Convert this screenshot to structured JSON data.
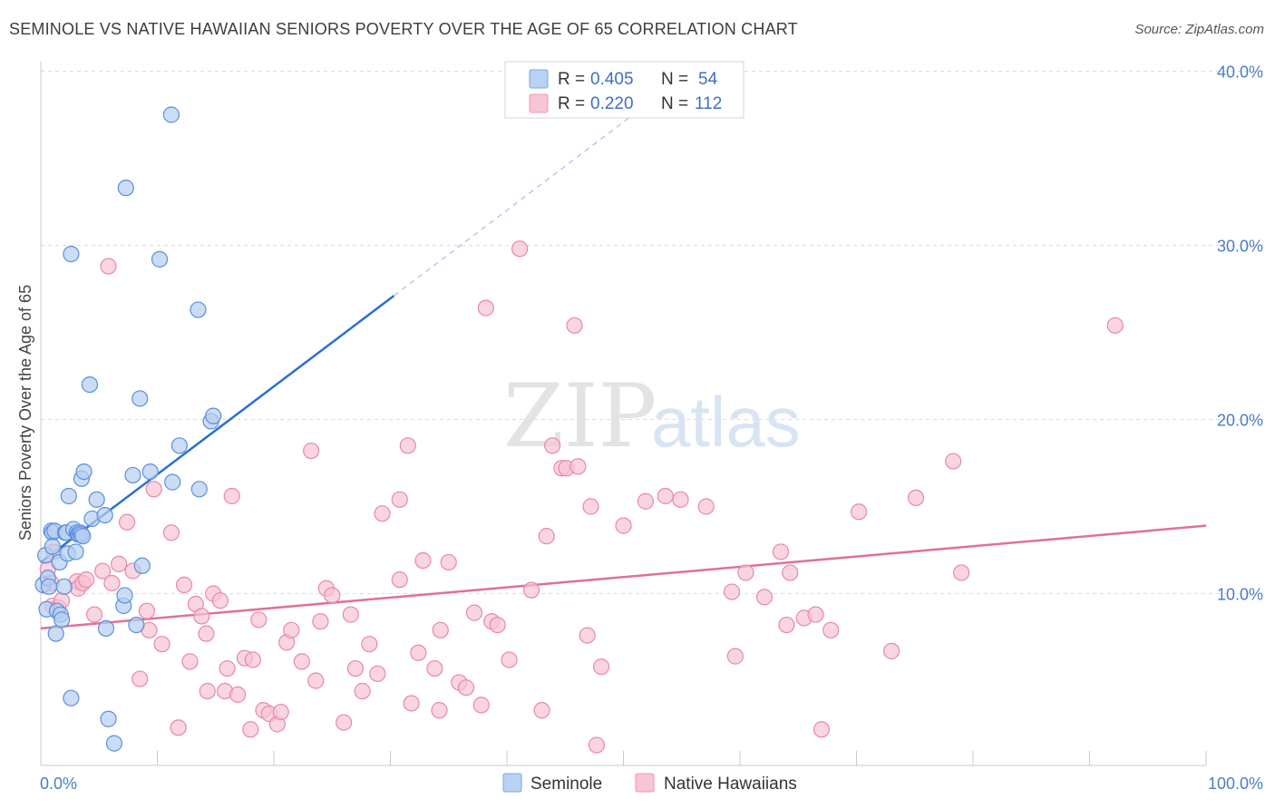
{
  "title": "SEMINOLE VS NATIVE HAWAIIAN SENIORS POVERTY OVER THE AGE OF 65 CORRELATION CHART",
  "source": "Source: ZipAtlas.com",
  "watermark": {
    "zip": "ZIP",
    "atlas": "atlas"
  },
  "legend": {
    "r_label": "R =",
    "n_label": "N =",
    "rows": [
      {
        "r": "0.405",
        "n": "54",
        "fill": "#b9d1f3",
        "stroke": "#7aa6e3"
      },
      {
        "r": "0.220",
        "n": "112",
        "fill": "#f9c4d4",
        "stroke": "#ee97b2"
      }
    ]
  },
  "bottom_legend": [
    "Seminole",
    "Native Hawaiians"
  ],
  "colors": {
    "seminole": "#5b8fdd",
    "seminole_fill": "#b5cdf1",
    "seminole_line": "#2b6fd1",
    "hawaiian": "#ea87a8",
    "hawaiian_fill": "#f7c3d2",
    "hawaiian_line": "#e26f97",
    "tick": "#4a7cc9",
    "grid": "#dcdcdc"
  },
  "chart_data": {
    "type": "scatter",
    "title": "SEMINOLE VS NATIVE HAWAIIAN SENIORS POVERTY OVER THE AGE OF 65 CORRELATION CHART",
    "xlabel": "",
    "ylabel": "Seniors Poverty Over the Age of 65",
    "xlim": [
      0,
      100
    ],
    "ylim": [
      0,
      42
    ],
    "x_tick_labels": [
      "0.0%",
      "100.0%"
    ],
    "y_ticks": [
      10,
      20,
      30,
      40
    ],
    "y_tick_labels": [
      "10.0%",
      "20.0%",
      "30.0%",
      "40.0%"
    ],
    "grid": true,
    "series": [
      {
        "name": "Seminole",
        "points": [
          [
            0.2,
            10.5
          ],
          [
            0.4,
            12.2
          ],
          [
            0.5,
            9.1
          ],
          [
            0.6,
            10.9
          ],
          [
            0.7,
            10.4
          ],
          [
            0.9,
            13.6
          ],
          [
            1.0,
            13.5
          ],
          [
            1.0,
            12.7
          ],
          [
            1.2,
            13.6
          ],
          [
            1.3,
            7.7
          ],
          [
            1.4,
            9.0
          ],
          [
            1.6,
            11.8
          ],
          [
            1.7,
            8.8
          ],
          [
            1.8,
            8.5
          ],
          [
            2.0,
            10.4
          ],
          [
            2.1,
            13.5
          ],
          [
            2.2,
            13.5
          ],
          [
            2.3,
            12.3
          ],
          [
            2.4,
            15.6
          ],
          [
            2.6,
            29.5
          ],
          [
            2.6,
            4.0
          ],
          [
            2.8,
            13.7
          ],
          [
            3.0,
            12.4
          ],
          [
            3.1,
            13.5
          ],
          [
            3.2,
            13.4
          ],
          [
            3.3,
            13.4
          ],
          [
            3.4,
            13.5
          ],
          [
            3.5,
            13.4
          ],
          [
            3.5,
            16.6
          ],
          [
            3.6,
            13.3
          ],
          [
            3.7,
            17.0
          ],
          [
            4.2,
            22.0
          ],
          [
            4.4,
            14.3
          ],
          [
            4.8,
            15.4
          ],
          [
            5.5,
            14.5
          ],
          [
            5.6,
            8.0
          ],
          [
            5.8,
            2.8
          ],
          [
            6.3,
            1.4
          ],
          [
            7.1,
            9.3
          ],
          [
            7.2,
            9.9
          ],
          [
            7.3,
            33.3
          ],
          [
            7.9,
            16.8
          ],
          [
            8.2,
            8.2
          ],
          [
            8.5,
            21.2
          ],
          [
            8.7,
            11.6
          ],
          [
            9.4,
            17.0
          ],
          [
            10.2,
            29.2
          ],
          [
            11.2,
            37.5
          ],
          [
            11.3,
            16.4
          ],
          [
            11.9,
            18.5
          ],
          [
            13.5,
            26.3
          ],
          [
            13.6,
            16.0
          ],
          [
            14.6,
            19.9
          ],
          [
            14.8,
            20.2
          ]
        ]
      },
      {
        "name": "Native Hawaiians",
        "points": [
          [
            0.6,
            11.4
          ],
          [
            0.9,
            10.6
          ],
          [
            1.0,
            9.3
          ],
          [
            1.1,
            12.4
          ],
          [
            1.5,
            9.2
          ],
          [
            1.8,
            9.6
          ],
          [
            3.1,
            10.7
          ],
          [
            3.2,
            10.3
          ],
          [
            3.6,
            10.6
          ],
          [
            3.9,
            10.8
          ],
          [
            4.6,
            8.8
          ],
          [
            5.3,
            11.3
          ],
          [
            5.8,
            28.8
          ],
          [
            6.1,
            10.6
          ],
          [
            6.7,
            11.7
          ],
          [
            7.4,
            14.1
          ],
          [
            7.9,
            11.3
          ],
          [
            8.5,
            5.1
          ],
          [
            9.1,
            9.0
          ],
          [
            9.3,
            7.9
          ],
          [
            9.7,
            16.0
          ],
          [
            10.4,
            7.1
          ],
          [
            11.2,
            13.5
          ],
          [
            11.8,
            2.3
          ],
          [
            12.3,
            10.5
          ],
          [
            12.8,
            6.1
          ],
          [
            13.3,
            9.4
          ],
          [
            13.8,
            8.7
          ],
          [
            14.2,
            7.7
          ],
          [
            14.3,
            4.4
          ],
          [
            14.8,
            10.0
          ],
          [
            15.4,
            9.6
          ],
          [
            15.8,
            4.4
          ],
          [
            16.0,
            5.7
          ],
          [
            16.4,
            15.6
          ],
          [
            16.9,
            4.2
          ],
          [
            17.5,
            6.3
          ],
          [
            18.0,
            2.2
          ],
          [
            18.2,
            6.2
          ],
          [
            18.7,
            8.5
          ],
          [
            19.1,
            3.3
          ],
          [
            19.6,
            3.1
          ],
          [
            20.3,
            2.5
          ],
          [
            20.6,
            3.2
          ],
          [
            21.1,
            7.2
          ],
          [
            21.5,
            7.9
          ],
          [
            22.4,
            6.1
          ],
          [
            23.2,
            18.2
          ],
          [
            23.6,
            5.0
          ],
          [
            24.0,
            8.4
          ],
          [
            24.5,
            10.3
          ],
          [
            25.0,
            9.9
          ],
          [
            26.0,
            2.6
          ],
          [
            26.6,
            8.8
          ],
          [
            27.0,
            5.7
          ],
          [
            27.6,
            4.4
          ],
          [
            28.2,
            7.1
          ],
          [
            28.9,
            5.4
          ],
          [
            29.3,
            14.6
          ],
          [
            30.8,
            10.8
          ],
          [
            30.8,
            15.4
          ],
          [
            31.5,
            18.5
          ],
          [
            31.8,
            3.7
          ],
          [
            32.4,
            6.6
          ],
          [
            32.8,
            11.9
          ],
          [
            33.8,
            5.7
          ],
          [
            34.2,
            3.3
          ],
          [
            34.3,
            7.9
          ],
          [
            35.0,
            11.8
          ],
          [
            35.9,
            4.9
          ],
          [
            36.5,
            4.6
          ],
          [
            37.2,
            8.9
          ],
          [
            37.8,
            3.6
          ],
          [
            38.2,
            26.4
          ],
          [
            38.7,
            8.4
          ],
          [
            39.2,
            8.2
          ],
          [
            40.2,
            6.2
          ],
          [
            41.1,
            29.8
          ],
          [
            42.1,
            10.2
          ],
          [
            43.0,
            3.3
          ],
          [
            43.4,
            13.3
          ],
          [
            43.9,
            18.5
          ],
          [
            44.7,
            17.2
          ],
          [
            45.1,
            17.2
          ],
          [
            45.8,
            25.4
          ],
          [
            46.1,
            17.3
          ],
          [
            46.9,
            7.6
          ],
          [
            47.2,
            15.0
          ],
          [
            47.7,
            1.3
          ],
          [
            48.1,
            5.8
          ],
          [
            50.0,
            13.9
          ],
          [
            51.9,
            15.3
          ],
          [
            53.6,
            15.6
          ],
          [
            54.9,
            15.4
          ],
          [
            57.1,
            15.0
          ],
          [
            59.3,
            10.1
          ],
          [
            59.6,
            6.4
          ],
          [
            60.5,
            11.2
          ],
          [
            62.1,
            9.8
          ],
          [
            63.5,
            12.4
          ],
          [
            64.0,
            8.2
          ],
          [
            64.3,
            11.2
          ],
          [
            65.5,
            8.6
          ],
          [
            66.5,
            8.8
          ],
          [
            67.0,
            2.2
          ],
          [
            67.8,
            7.9
          ],
          [
            70.2,
            14.7
          ],
          [
            73.0,
            6.7
          ],
          [
            75.1,
            15.5
          ],
          [
            78.3,
            17.6
          ],
          [
            79.0,
            11.2
          ],
          [
            92.2,
            25.4
          ]
        ]
      }
    ],
    "trendlines": [
      {
        "series": "Seminole",
        "x0": 0,
        "y0": 11.8,
        "x1": 30.3,
        "y1": 27.1,
        "dashed_to_x": 52.6,
        "dashed_to_y": 38.4
      },
      {
        "series": "Native Hawaiians",
        "x0": 0,
        "y0": 8.0,
        "x1": 100,
        "y1": 13.9
      }
    ]
  }
}
